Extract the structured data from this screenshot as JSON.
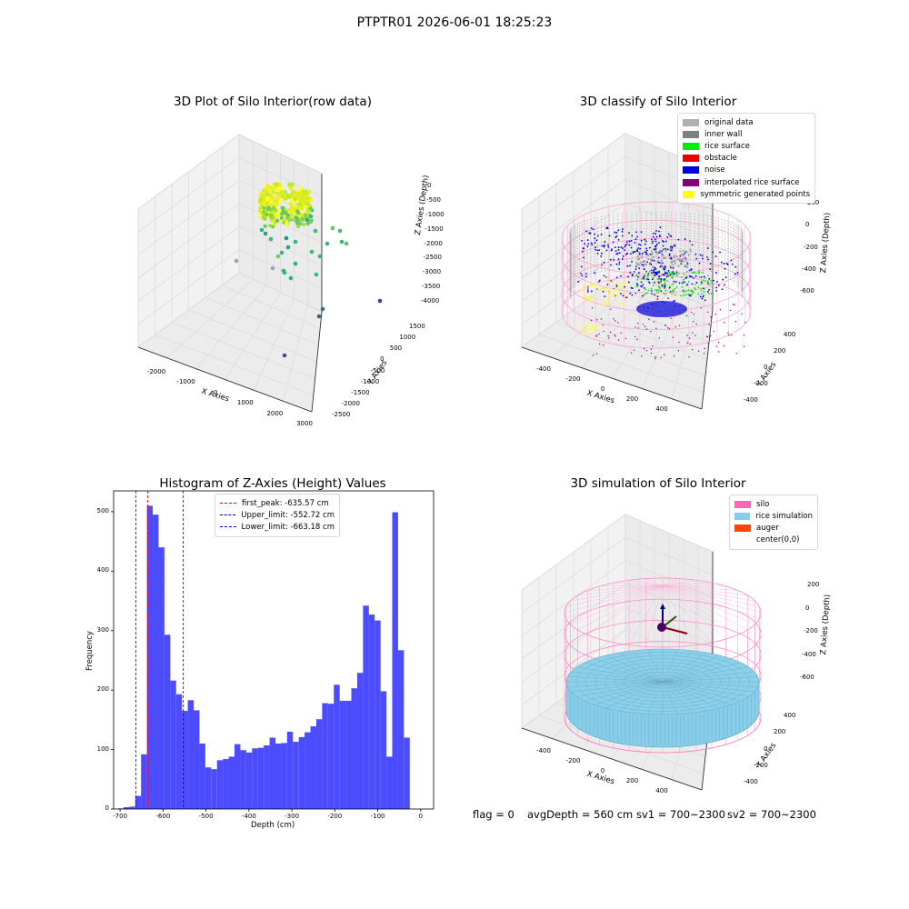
{
  "suptitle": "PTPTR01 2026-06-01 18:25:23",
  "panels": {
    "raw": {
      "title": "3D Plot of Silo Interior(row data)",
      "xlabel": "X Axies",
      "ylabel": "Y Axies",
      "zlabel": "Z Axies (Depth)",
      "xticks": [
        "-2000",
        "-1000",
        "0",
        "1000",
        "2000",
        "3000"
      ],
      "yticks": [
        "1500",
        "1000",
        "500",
        "0",
        "-500",
        "-1000",
        "-1500",
        "-2000",
        "-2500"
      ],
      "zticks": [
        "0",
        "-500",
        "-1000",
        "-1500",
        "-2000",
        "-2500",
        "-3000",
        "-3500",
        "-4000"
      ]
    },
    "classify": {
      "title": "3D classify of Silo Interior",
      "xlabel": "X Axies",
      "ylabel": "Y Axies",
      "zlabel": "Z Axies (Depth)",
      "xticks": [
        "-400",
        "-200",
        "0",
        "200",
        "400"
      ],
      "yticks": [
        "400",
        "200",
        "0",
        "-200",
        "-400"
      ],
      "zticks": [
        "200",
        "0",
        "-200",
        "-400",
        "-600"
      ],
      "legend": [
        {
          "label": "original data",
          "color": "#b0b0b0"
        },
        {
          "label": "inner wall",
          "color": "#808080"
        },
        {
          "label": "rice surface",
          "color": "#00ee00"
        },
        {
          "label": "obstacle",
          "color": "#ee0000"
        },
        {
          "label": "noise",
          "color": "#0000dd"
        },
        {
          "label": "interpolated rice surface",
          "color": "#800080"
        },
        {
          "label": "symmetric generated points",
          "color": "#ffff00"
        }
      ]
    },
    "simulation": {
      "title": "3D simulation of Silo Interior",
      "xlabel": "X Axies",
      "ylabel": "Y Axies",
      "zlabel": "Z Axies (Depth)",
      "xticks": [
        "-400",
        "-200",
        "0",
        "200",
        "400"
      ],
      "yticks": [
        "400",
        "200",
        "0",
        "-200",
        "-400"
      ],
      "zticks": [
        "200",
        "0",
        "-200",
        "-400",
        "-600"
      ],
      "legend": [
        {
          "label": "silo",
          "color": "#ff69b4"
        },
        {
          "label": "rice simulation",
          "color": "#87ceeb"
        },
        {
          "label": "auger",
          "color": "#ff4500"
        },
        {
          "label": "center(0,0)",
          "color": ""
        }
      ]
    }
  },
  "chart_data": {
    "type": "bar",
    "title": "Histogram of Z-Axies (Height) Values",
    "xlabel": "Depth (cm)",
    "ylabel": "Frequency",
    "xlim": [
      -715,
      30
    ],
    "ylim": [
      0,
      535
    ],
    "xticks": [
      -700,
      -600,
      -500,
      -400,
      -300,
      -200,
      -100,
      0
    ],
    "yticks": [
      0,
      100,
      200,
      300,
      400,
      500
    ],
    "bar_color": "#4b4bff",
    "bin_start": -705.5,
    "bin_width": 13.6,
    "values": [
      1,
      3,
      4,
      22,
      92,
      510,
      495,
      440,
      293,
      216,
      193,
      165,
      183,
      166,
      110,
      70,
      67,
      82,
      84,
      88,
      109,
      99,
      95,
      102,
      103,
      107,
      120,
      110,
      111,
      130,
      113,
      121,
      129,
      139,
      151,
      178,
      177,
      209,
      182,
      182,
      203,
      229,
      342,
      327,
      317,
      198,
      88,
      499,
      267,
      120
    ],
    "lines": [
      {
        "label": "first_peak: -635.57 cm",
        "x": -635.57,
        "color": "#ff0000"
      },
      {
        "label": "Upper_limit: -552.72 cm",
        "x": -552.72,
        "color": "#00008b"
      },
      {
        "label": "Lower_limit: -663.18 cm",
        "x": -663.18,
        "color": "#0000ff"
      }
    ]
  },
  "status": {
    "flag": "flag = 0",
    "avg": "avgDepth = 560 cm",
    "sv1": "sv1 = 700~2300",
    "sv2": "sv2 = 700~2300"
  }
}
